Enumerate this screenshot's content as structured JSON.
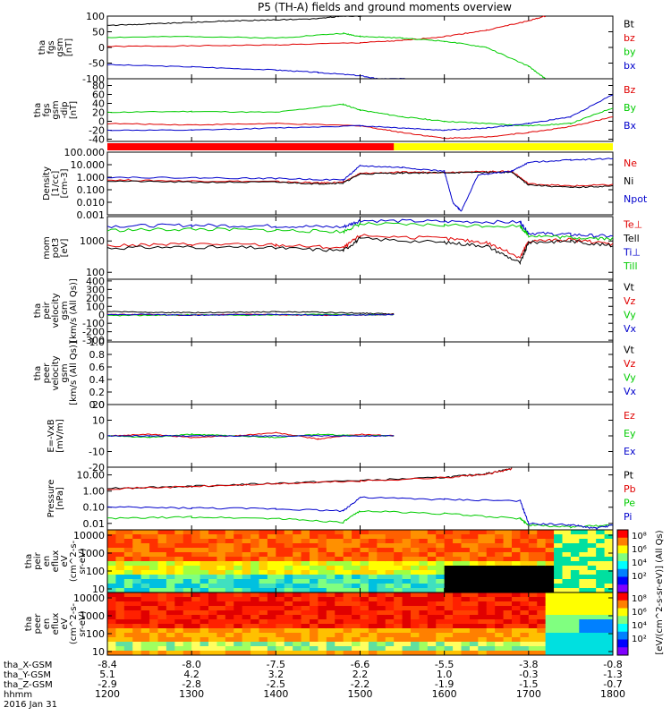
{
  "title": "P5 (TH-A) fields and ground moments overview",
  "chart_data": [
    {
      "id": "p1",
      "type": "line",
      "ylabel": [
        "tha",
        "fgs",
        "gsm",
        "[nT]"
      ],
      "yticks": [
        100,
        50,
        0,
        -50,
        -100
      ],
      "ylim": [
        -100,
        100
      ],
      "legend": [
        "Bt",
        "bz",
        "by",
        "bx"
      ],
      "series": [
        {
          "name": "Bt",
          "color": "#000000",
          "x": [
            1200,
            1250,
            1300,
            1350,
            1400,
            1450,
            1480,
            1500,
            1520,
            1540
          ],
          "y": [
            70,
            75,
            80,
            85,
            88,
            92,
            100,
            100,
            104,
            104
          ]
        },
        {
          "name": "bz",
          "color": "#e00000",
          "x": [
            1200,
            1300,
            1400,
            1500,
            1550,
            1600,
            1650,
            1700,
            1720
          ],
          "y": [
            3,
            5,
            8,
            15,
            22,
            35,
            55,
            85,
            100
          ]
        },
        {
          "name": "by",
          "color": "#00cc00",
          "x": [
            1200,
            1300,
            1400,
            1480,
            1500,
            1550,
            1600,
            1650,
            1700,
            1720
          ],
          "y": [
            32,
            35,
            30,
            45,
            35,
            30,
            20,
            0,
            -60,
            -100
          ]
        },
        {
          "name": "bx",
          "color": "#0000cc",
          "x": [
            1200,
            1300,
            1400,
            1450,
            1500,
            1520,
            1560
          ],
          "y": [
            -55,
            -62,
            -72,
            -80,
            -90,
            -100,
            -100
          ]
        }
      ]
    },
    {
      "id": "p2",
      "type": "line",
      "ylabel": [
        "tha",
        "fgs",
        "gsm",
        "-dip",
        "[nT]"
      ],
      "yticks": [
        80,
        60,
        40,
        20,
        0,
        -20,
        -40
      ],
      "ylim": [
        -45,
        95
      ],
      "legend": [
        "Bz",
        "By",
        "Bx"
      ],
      "series": [
        {
          "name": "Bz",
          "color": "#e00000",
          "x": [
            1200,
            1300,
            1400,
            1500,
            1550,
            1600,
            1650,
            1700,
            1750,
            1800
          ],
          "y": [
            -5,
            -8,
            -5,
            -10,
            -25,
            -38,
            -35,
            -25,
            -12,
            10
          ]
        },
        {
          "name": "By",
          "color": "#00cc00",
          "x": [
            1200,
            1300,
            1400,
            1480,
            1500,
            1550,
            1600,
            1650,
            1700,
            1750,
            1800
          ],
          "y": [
            20,
            22,
            20,
            38,
            25,
            10,
            0,
            -5,
            -10,
            -5,
            30
          ]
        },
        {
          "name": "Bx",
          "color": "#0000cc",
          "x": [
            1200,
            1300,
            1400,
            1500,
            1550,
            1600,
            1650,
            1700,
            1750,
            1800
          ],
          "y": [
            -20,
            -20,
            -15,
            -10,
            -15,
            -20,
            -15,
            -5,
            10,
            60
          ]
        }
      ]
    },
    {
      "id": "p3",
      "type": "line",
      "log": true,
      "ylabel": [
        "Density",
        "[1/cc]",
        "[cm-3]"
      ],
      "yticks": [
        "100.000",
        "10.000",
        "1.000",
        "0.100",
        "0.010",
        "0.001"
      ],
      "ylim": [
        0.001,
        100
      ],
      "legend": [
        "Ne",
        "Ni",
        "Npot"
      ],
      "series": [
        {
          "name": "Ne",
          "color": "#e00000",
          "x": [
            1200,
            1300,
            1400,
            1450,
            1480,
            1500,
            1550,
            1600,
            1650,
            1680,
            1700,
            1750,
            1800
          ],
          "y": [
            0.6,
            0.5,
            0.45,
            0.35,
            0.4,
            2.0,
            2.5,
            2.5,
            2.8,
            3.0,
            0.3,
            0.2,
            0.25
          ]
        },
        {
          "name": "Ni",
          "color": "#000000",
          "x": [
            1200,
            1300,
            1400,
            1450,
            1480,
            1500,
            1550,
            1600,
            1650,
            1680,
            1700,
            1750,
            1800
          ],
          "y": [
            0.5,
            0.4,
            0.4,
            0.3,
            0.35,
            1.8,
            2.2,
            2.3,
            2.5,
            2.5,
            0.25,
            0.15,
            0.2
          ]
        },
        {
          "name": "Npot",
          "color": "#0000cc",
          "x": [
            1200,
            1300,
            1400,
            1480,
            1500,
            1550,
            1600,
            1610,
            1620,
            1640,
            1680,
            1700,
            1750,
            1800
          ],
          "y": [
            1.0,
            0.9,
            0.8,
            0.6,
            8,
            6,
            3,
            0.01,
            0.002,
            1.5,
            3,
            15,
            25,
            30
          ]
        }
      ]
    },
    {
      "id": "p4",
      "type": "line",
      "log": true,
      "ylabel": [
        "mom",
        "pot3",
        "[eV]"
      ],
      "yticks": [
        1000,
        100
      ],
      "ylim": [
        60,
        6000
      ],
      "legend": [
        "Te⊥",
        "Tell",
        "Ti⊥",
        "Till"
      ],
      "series": [
        {
          "name": "Te⊥",
          "color": "#e00000",
          "x": [
            1200,
            1300,
            1400,
            1480,
            1500,
            1600,
            1650,
            1690,
            1700,
            1750,
            1800
          ],
          "y": [
            700,
            800,
            750,
            600,
            1500,
            1200,
            900,
            300,
            1000,
            1100,
            800
          ]
        },
        {
          "name": "Tell",
          "color": "#000000",
          "x": [
            1200,
            1300,
            1400,
            1480,
            1500,
            1600,
            1650,
            1690,
            1700,
            1750,
            1800
          ],
          "y": [
            600,
            650,
            600,
            500,
            1200,
            900,
            700,
            200,
            900,
            1000,
            700
          ]
        },
        {
          "name": "Ti⊥",
          "color": "#0000cc",
          "x": [
            1200,
            1300,
            1400,
            1480,
            1500,
            1600,
            1690,
            1700,
            1750,
            1800
          ],
          "y": [
            3000,
            3200,
            3000,
            2800,
            4500,
            4200,
            4000,
            1800,
            1600,
            1400
          ]
        },
        {
          "name": "Till",
          "color": "#00cc00",
          "x": [
            1200,
            1300,
            1400,
            1480,
            1500,
            1600,
            1690,
            1700,
            1750,
            1800
          ],
          "y": [
            2200,
            2400,
            2200,
            2000,
            3500,
            3200,
            3000,
            1500,
            1300,
            1200
          ]
        }
      ]
    },
    {
      "id": "p5",
      "type": "line",
      "ylabel": [
        "tha",
        "peir",
        "velocity",
        "gsm",
        "[km/s (All Qs)]"
      ],
      "yticks": [
        400,
        300,
        200,
        100,
        0,
        -100,
        -200,
        -300
      ],
      "ylim": [
        -320,
        420
      ],
      "legend": [
        "Vt",
        "Vz",
        "Vy",
        "Vx"
      ],
      "series": [
        {
          "name": "Vt",
          "color": "#000000",
          "x": [
            1200,
            1250,
            1300,
            1350,
            1400,
            1450,
            1500,
            1540
          ],
          "y": [
            40,
            30,
            25,
            30,
            35,
            30,
            20,
            10
          ]
        },
        {
          "name": "Vz",
          "color": "#e00000",
          "x": [
            1200,
            1250,
            1300,
            1350,
            1400,
            1450,
            1500,
            1540
          ],
          "y": [
            5,
            0,
            -5,
            5,
            0,
            -5,
            0,
            0
          ]
        },
        {
          "name": "Vy",
          "color": "#00cc00",
          "x": [
            1200,
            1250,
            1300,
            1350,
            1400,
            1450,
            1500,
            1540
          ],
          "y": [
            -10,
            -5,
            0,
            -5,
            0,
            5,
            0,
            0
          ]
        },
        {
          "name": "Vx",
          "color": "#0000cc",
          "x": [
            1200,
            1250,
            1300,
            1350,
            1400,
            1450,
            1500,
            1540
          ],
          "y": [
            0,
            5,
            -5,
            0,
            5,
            -5,
            0,
            0
          ]
        }
      ]
    },
    {
      "id": "p6",
      "type": "line",
      "ylabel": [
        "tha",
        "peer",
        "velocity",
        "gsm",
        "[km/s (All Qs)]"
      ],
      "yticks": [
        "1.0",
        "0.8",
        "0.6",
        "0.4",
        "0.2",
        "0.0"
      ],
      "ylim": [
        0,
        1
      ],
      "legend": [
        "Vt",
        "Vz",
        "Vy",
        "Vx"
      ],
      "series": []
    },
    {
      "id": "p7",
      "type": "line",
      "ylabel": [
        "E=-VxB",
        "[mV/m]"
      ],
      "yticks": [
        20,
        10,
        0,
        -10,
        -20
      ],
      "ylim": [
        -20,
        20
      ],
      "legend": [
        "Ez",
        "Ey",
        "Ex"
      ],
      "series": [
        {
          "name": "Ez",
          "color": "#e00000",
          "x": [
            1200,
            1250,
            1300,
            1350,
            1400,
            1450,
            1500,
            1540
          ],
          "y": [
            0,
            1,
            -1,
            0,
            2,
            -2,
            1,
            0
          ]
        },
        {
          "name": "Ey",
          "color": "#00cc00",
          "x": [
            1200,
            1250,
            1300,
            1350,
            1400,
            1450,
            1500,
            1540
          ],
          "y": [
            0,
            -1,
            1,
            0,
            -1,
            1,
            0,
            0
          ]
        },
        {
          "name": "Ex",
          "color": "#0000cc",
          "x": [
            1200,
            1250,
            1300,
            1350,
            1400,
            1450,
            1500,
            1540
          ],
          "y": [
            0,
            0,
            0,
            0,
            0,
            0,
            0,
            0
          ]
        }
      ]
    },
    {
      "id": "p8",
      "type": "line",
      "log": true,
      "ylabel": [
        "Pressure",
        "[nPa]"
      ],
      "yticks": [
        "10.00",
        "1.00",
        "0.10",
        "0.01"
      ],
      "ylim": [
        0.004,
        30
      ],
      "legend": [
        "Pt",
        "Pb",
        "Pe",
        "Pi"
      ],
      "series": [
        {
          "name": "Pt",
          "color": "#000000",
          "x": [
            1200,
            1300,
            1400,
            1500,
            1600,
            1650,
            1680
          ],
          "y": [
            1.5,
            2,
            3,
            4.5,
            7,
            12,
            25
          ]
        },
        {
          "name": "Pb",
          "color": "#e00000",
          "x": [
            1200,
            1300,
            1400,
            1500,
            1600,
            1650,
            1680
          ],
          "y": [
            1.4,
            1.9,
            2.8,
            4.2,
            6.8,
            11,
            24
          ]
        },
        {
          "name": "Pe",
          "color": "#00cc00",
          "x": [
            1200,
            1300,
            1400,
            1480,
            1500,
            1600,
            1690,
            1700,
            1750,
            1800
          ],
          "y": [
            0.02,
            0.025,
            0.02,
            0.012,
            0.06,
            0.04,
            0.02,
            0.008,
            0.006,
            0.008
          ]
        },
        {
          "name": "Pi",
          "color": "#0000cc",
          "x": [
            1200,
            1300,
            1400,
            1480,
            1500,
            1600,
            1690,
            1700,
            1750,
            1780,
            1800
          ],
          "y": [
            0.1,
            0.09,
            0.08,
            0.06,
            0.4,
            0.3,
            0.25,
            0.01,
            0.008,
            0.005,
            0.008
          ]
        }
      ]
    },
    {
      "id": "p9",
      "type": "heatmap",
      "ylabel": [
        "tha",
        "peir",
        "en",
        "eflux",
        "eV",
        "(cm^2-s-",
        "sr-eV)"
      ],
      "yticks": [
        10000,
        1000,
        100,
        10
      ]
    },
    {
      "id": "p10",
      "type": "heatmap",
      "ylabel": [
        "tha",
        "peer",
        "en",
        "eflux",
        "eV",
        "(cm^2-s-",
        "sr-eV)"
      ],
      "yticks": [
        10000,
        1000,
        100,
        10
      ]
    }
  ],
  "colorbar": {
    "label": "[eV/(cm^2-s-sr-eV)] (All Qs)",
    "top_ticks": [
      "10⁸",
      "10⁶",
      "10⁴",
      "10²"
    ],
    "bottom_ticks": [
      "10⁸",
      "10⁶",
      "10⁴",
      "10²"
    ]
  },
  "xaxis": {
    "rows": [
      {
        "label": "tha_X-GSM",
        "values": [
          "-8.4",
          "-8.0",
          "-7.5",
          "-6.6",
          "-5.5",
          "-3.8",
          "-0.8"
        ]
      },
      {
        "label": "tha_Y-GSM",
        "values": [
          "5.1",
          "4.2",
          "3.2",
          "2.2",
          "1.0",
          "-0.3",
          "-1.3"
        ]
      },
      {
        "label": "tha_Z-GSM",
        "values": [
          "-2.9",
          "-2.8",
          "-2.5",
          "-2.2",
          "-1.9",
          "-1.5",
          "-0.7"
        ]
      },
      {
        "label": "hhmm",
        "values": [
          "1200",
          "1300",
          "1400",
          "1500",
          "1600",
          "1700",
          "1800"
        ]
      }
    ],
    "date": "2016 Jan 31",
    "ticks": [
      1200,
      1300,
      1400,
      1500,
      1600,
      1700,
      1800
    ]
  }
}
